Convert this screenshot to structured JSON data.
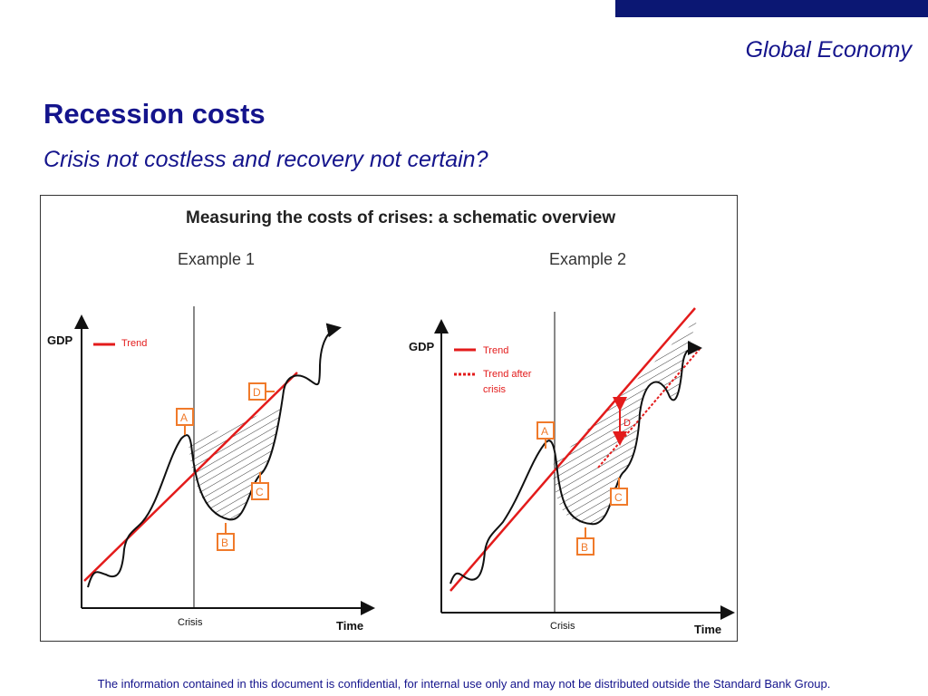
{
  "header": {
    "title": "Global Economy"
  },
  "slide": {
    "title": "Recession costs",
    "subtitle": "Crisis not costless and recovery not certain?"
  },
  "figure": {
    "title": "Measuring the costs of crises: a schematic overview",
    "example1": {
      "heading": "Example 1",
      "y_axis_label": "GDP",
      "x_axis_label": "Time",
      "crisis_label": "Crisis",
      "legend_trend": "Trend",
      "markers": {
        "a": "A",
        "b": "B",
        "c": "C",
        "d": "D"
      }
    },
    "example2": {
      "heading": "Example 2",
      "y_axis_label": "GDP",
      "x_axis_label": "Time",
      "crisis_label": "Crisis",
      "legend_trend": "Trend",
      "legend_trend_after_line1": "Trend after",
      "legend_trend_after_line2": "crisis",
      "markers": {
        "a": "A",
        "b": "B",
        "c": "C",
        "d": "D"
      }
    }
  },
  "colors": {
    "brand": "#14148c",
    "top_bar": "#0b1773",
    "trend": "#e31b1b",
    "marker": "#f07a2a"
  },
  "footer": {
    "text": "The information contained in this document is confidential, for internal use only and may not be distributed outside the Standard Bank Group."
  }
}
